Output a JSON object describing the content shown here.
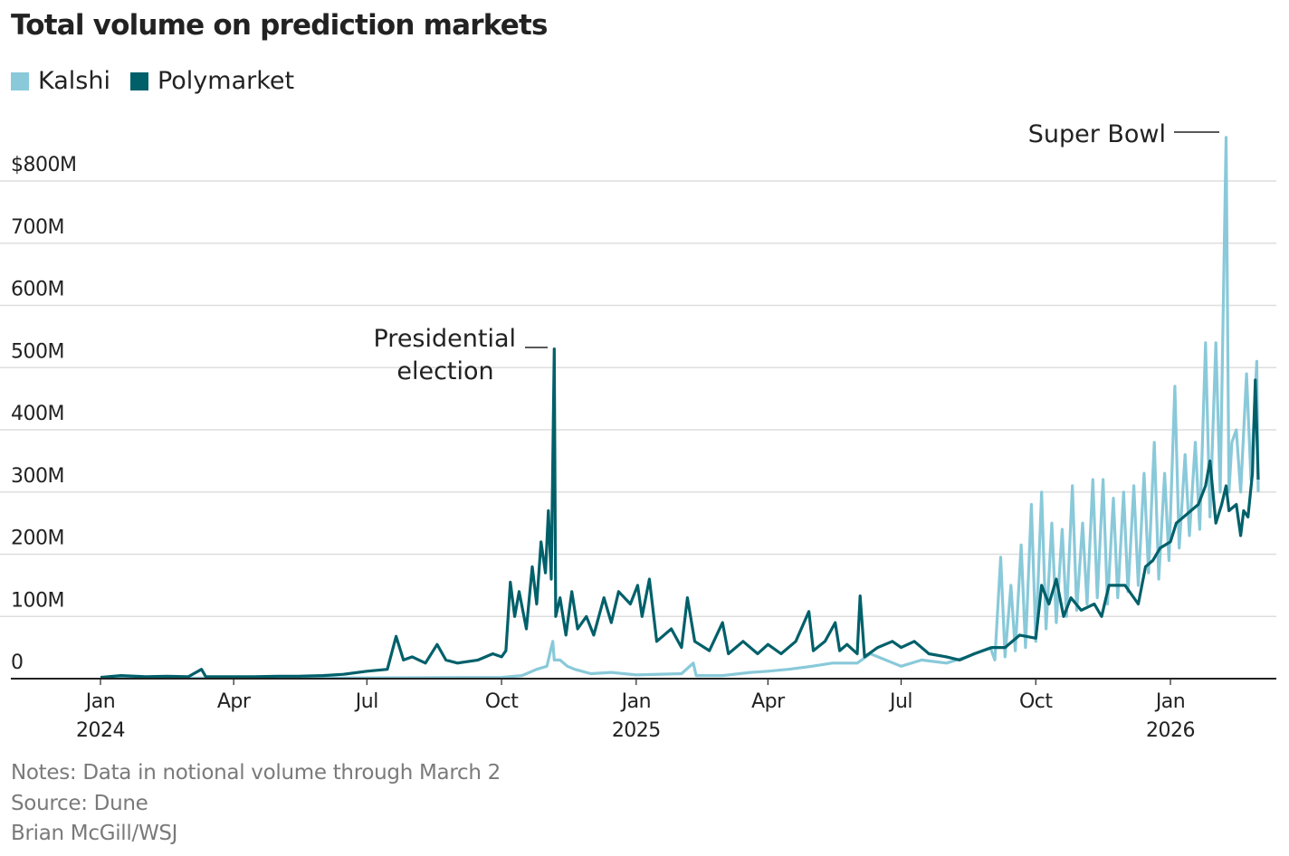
{
  "chart_data": {
    "type": "line",
    "title": "Total volume on prediction markets",
    "xlabel": "",
    "ylabel": "",
    "ylim": [
      0,
      800
    ],
    "y_ticks": [
      {
        "value": 0,
        "label": "0"
      },
      {
        "value": 100,
        "label": "100M"
      },
      {
        "value": 200,
        "label": "200M"
      },
      {
        "value": 300,
        "label": "300M"
      },
      {
        "value": 400,
        "label": "400M"
      },
      {
        "value": 500,
        "label": "500M"
      },
      {
        "value": 600,
        "label": "600M"
      },
      {
        "value": 700,
        "label": "700M"
      },
      {
        "value": 800,
        "label": "$800M"
      }
    ],
    "x_ticks": [
      {
        "date": "2024-01-01",
        "label": "Jan",
        "year": "2024"
      },
      {
        "date": "2024-04-01",
        "label": "Apr",
        "year": ""
      },
      {
        "date": "2024-07-01",
        "label": "Jul",
        "year": ""
      },
      {
        "date": "2024-10-01",
        "label": "Oct",
        "year": ""
      },
      {
        "date": "2025-01-01",
        "label": "Jan",
        "year": "2025"
      },
      {
        "date": "2025-04-01",
        "label": "Apr",
        "year": ""
      },
      {
        "date": "2025-07-01",
        "label": "Jul",
        "year": ""
      },
      {
        "date": "2025-10-01",
        "label": "Oct",
        "year": ""
      },
      {
        "date": "2026-01-01",
        "label": "Jan",
        "year": "2026"
      }
    ],
    "grid": true,
    "legend_position": "top-left",
    "series": [
      {
        "name": "Kalshi",
        "color": "#89c9d9",
        "points": [
          [
            "2024-01-01",
            1
          ],
          [
            "2024-06-01",
            1
          ],
          [
            "2024-10-01",
            2
          ],
          [
            "2024-10-15",
            5
          ],
          [
            "2024-10-25",
            15
          ],
          [
            "2024-11-01",
            20
          ],
          [
            "2024-11-04",
            50
          ],
          [
            "2024-11-05",
            60
          ],
          [
            "2024-11-06",
            30
          ],
          [
            "2024-11-10",
            30
          ],
          [
            "2024-11-15",
            20
          ],
          [
            "2024-11-20",
            15
          ],
          [
            "2024-12-01",
            8
          ],
          [
            "2024-12-15",
            10
          ],
          [
            "2025-01-01",
            6
          ],
          [
            "2025-02-01",
            8
          ],
          [
            "2025-02-09",
            25
          ],
          [
            "2025-02-11",
            5
          ],
          [
            "2025-03-01",
            5
          ],
          [
            "2025-03-20",
            10
          ],
          [
            "2025-04-01",
            12
          ],
          [
            "2025-04-15",
            15
          ],
          [
            "2025-05-01",
            20
          ],
          [
            "2025-05-15",
            25
          ],
          [
            "2025-06-01",
            25
          ],
          [
            "2025-06-10",
            40
          ],
          [
            "2025-07-01",
            20
          ],
          [
            "2025-07-15",
            30
          ],
          [
            "2025-08-01",
            25
          ],
          [
            "2025-08-15",
            35
          ],
          [
            "2025-08-31",
            50
          ],
          [
            "2025-09-03",
            30
          ],
          [
            "2025-09-07",
            195
          ],
          [
            "2025-09-10",
            35
          ],
          [
            "2025-09-14",
            150
          ],
          [
            "2025-09-17",
            45
          ],
          [
            "2025-09-21",
            215
          ],
          [
            "2025-09-24",
            50
          ],
          [
            "2025-09-28",
            280
          ],
          [
            "2025-10-01",
            60
          ],
          [
            "2025-10-05",
            300
          ],
          [
            "2025-10-08",
            80
          ],
          [
            "2025-10-12",
            250
          ],
          [
            "2025-10-15",
            90
          ],
          [
            "2025-10-19",
            240
          ],
          [
            "2025-10-22",
            100
          ],
          [
            "2025-10-26",
            310
          ],
          [
            "2025-10-29",
            110
          ],
          [
            "2025-11-02",
            250
          ],
          [
            "2025-11-05",
            120
          ],
          [
            "2025-11-09",
            320
          ],
          [
            "2025-11-12",
            130
          ],
          [
            "2025-11-16",
            320
          ],
          [
            "2025-11-19",
            120
          ],
          [
            "2025-11-23",
            290
          ],
          [
            "2025-11-26",
            130
          ],
          [
            "2025-11-30",
            300
          ],
          [
            "2025-12-03",
            140
          ],
          [
            "2025-12-07",
            310
          ],
          [
            "2025-12-10",
            150
          ],
          [
            "2025-12-14",
            330
          ],
          [
            "2025-12-17",
            170
          ],
          [
            "2025-12-21",
            380
          ],
          [
            "2025-12-24",
            160
          ],
          [
            "2025-12-28",
            330
          ],
          [
            "2025-12-31",
            190
          ],
          [
            "2026-01-04",
            470
          ],
          [
            "2026-01-07",
            210
          ],
          [
            "2026-01-11",
            360
          ],
          [
            "2026-01-14",
            230
          ],
          [
            "2026-01-18",
            380
          ],
          [
            "2026-01-21",
            240
          ],
          [
            "2026-01-25",
            540
          ],
          [
            "2026-01-28",
            260
          ],
          [
            "2026-02-01",
            540
          ],
          [
            "2026-02-04",
            300
          ],
          [
            "2026-02-08",
            870
          ],
          [
            "2026-02-10",
            300
          ],
          [
            "2026-02-12",
            380
          ],
          [
            "2026-02-15",
            400
          ],
          [
            "2026-02-18",
            300
          ],
          [
            "2026-02-22",
            490
          ],
          [
            "2026-02-25",
            320
          ],
          [
            "2026-03-01",
            510
          ],
          [
            "2026-03-02",
            300
          ]
        ]
      },
      {
        "name": "Polymarket",
        "color": "#00606a",
        "points": [
          [
            "2024-01-01",
            2
          ],
          [
            "2024-01-15",
            5
          ],
          [
            "2024-02-01",
            3
          ],
          [
            "2024-02-15",
            4
          ],
          [
            "2024-03-01",
            3
          ],
          [
            "2024-03-10",
            15
          ],
          [
            "2024-03-13",
            3
          ],
          [
            "2024-04-01",
            3
          ],
          [
            "2024-04-15",
            3
          ],
          [
            "2024-05-01",
            4
          ],
          [
            "2024-05-15",
            4
          ],
          [
            "2024-06-01",
            5
          ],
          [
            "2024-06-15",
            7
          ],
          [
            "2024-07-01",
            12
          ],
          [
            "2024-07-15",
            15
          ],
          [
            "2024-07-21",
            68
          ],
          [
            "2024-07-26",
            30
          ],
          [
            "2024-08-01",
            35
          ],
          [
            "2024-08-10",
            25
          ],
          [
            "2024-08-18",
            55
          ],
          [
            "2024-08-24",
            30
          ],
          [
            "2024-09-01",
            25
          ],
          [
            "2024-09-15",
            30
          ],
          [
            "2024-09-25",
            40
          ],
          [
            "2024-10-01",
            35
          ],
          [
            "2024-10-04",
            45
          ],
          [
            "2024-10-07",
            155
          ],
          [
            "2024-10-10",
            100
          ],
          [
            "2024-10-13",
            140
          ],
          [
            "2024-10-18",
            80
          ],
          [
            "2024-10-22",
            180
          ],
          [
            "2024-10-25",
            120
          ],
          [
            "2024-10-28",
            220
          ],
          [
            "2024-10-31",
            170
          ],
          [
            "2024-11-02",
            270
          ],
          [
            "2024-11-04",
            160
          ],
          [
            "2024-11-06",
            530
          ],
          [
            "2024-11-07",
            100
          ],
          [
            "2024-11-10",
            130
          ],
          [
            "2024-11-14",
            70
          ],
          [
            "2024-11-18",
            140
          ],
          [
            "2024-11-22",
            80
          ],
          [
            "2024-11-28",
            100
          ],
          [
            "2024-12-03",
            70
          ],
          [
            "2024-12-10",
            130
          ],
          [
            "2024-12-15",
            90
          ],
          [
            "2024-12-20",
            140
          ],
          [
            "2024-12-28",
            120
          ],
          [
            "2025-01-02",
            150
          ],
          [
            "2025-01-05",
            100
          ],
          [
            "2025-01-10",
            160
          ],
          [
            "2025-01-15",
            60
          ],
          [
            "2025-01-25",
            80
          ],
          [
            "2025-02-01",
            50
          ],
          [
            "2025-02-05",
            130
          ],
          [
            "2025-02-10",
            60
          ],
          [
            "2025-02-20",
            45
          ],
          [
            "2025-03-01",
            90
          ],
          [
            "2025-03-05",
            40
          ],
          [
            "2025-03-15",
            60
          ],
          [
            "2025-03-25",
            40
          ],
          [
            "2025-04-01",
            55
          ],
          [
            "2025-04-10",
            40
          ],
          [
            "2025-04-20",
            60
          ],
          [
            "2025-04-29",
            108
          ],
          [
            "2025-05-02",
            45
          ],
          [
            "2025-05-10",
            60
          ],
          [
            "2025-05-17",
            90
          ],
          [
            "2025-05-20",
            45
          ],
          [
            "2025-05-25",
            55
          ],
          [
            "2025-06-01",
            40
          ],
          [
            "2025-06-03",
            133
          ],
          [
            "2025-06-06",
            35
          ],
          [
            "2025-06-15",
            50
          ],
          [
            "2025-06-25",
            60
          ],
          [
            "2025-07-01",
            50
          ],
          [
            "2025-07-10",
            60
          ],
          [
            "2025-07-20",
            40
          ],
          [
            "2025-08-01",
            35
          ],
          [
            "2025-08-10",
            30
          ],
          [
            "2025-08-20",
            40
          ],
          [
            "2025-09-01",
            50
          ],
          [
            "2025-09-10",
            50
          ],
          [
            "2025-09-20",
            70
          ],
          [
            "2025-10-01",
            65
          ],
          [
            "2025-10-05",
            150
          ],
          [
            "2025-10-10",
            120
          ],
          [
            "2025-10-15",
            160
          ],
          [
            "2025-10-20",
            100
          ],
          [
            "2025-10-25",
            130
          ],
          [
            "2025-11-01",
            110
          ],
          [
            "2025-11-10",
            120
          ],
          [
            "2025-11-15",
            100
          ],
          [
            "2025-11-20",
            150
          ],
          [
            "2025-12-01",
            150
          ],
          [
            "2025-12-10",
            120
          ],
          [
            "2025-12-15",
            180
          ],
          [
            "2025-12-20",
            190
          ],
          [
            "2025-12-25",
            210
          ],
          [
            "2026-01-01",
            220
          ],
          [
            "2026-01-05",
            250
          ],
          [
            "2026-01-10",
            260
          ],
          [
            "2026-01-15",
            270
          ],
          [
            "2026-01-20",
            280
          ],
          [
            "2026-01-25",
            310
          ],
          [
            "2026-01-28",
            350
          ],
          [
            "2026-02-01",
            250
          ],
          [
            "2026-02-05",
            280
          ],
          [
            "2026-02-08",
            310
          ],
          [
            "2026-02-10",
            270
          ],
          [
            "2026-02-15",
            280
          ],
          [
            "2026-02-18",
            230
          ],
          [
            "2026-02-20",
            270
          ],
          [
            "2026-02-23",
            260
          ],
          [
            "2026-02-26",
            330
          ],
          [
            "2026-02-28",
            480
          ],
          [
            "2026-03-02",
            320
          ]
        ]
      }
    ],
    "annotations": [
      {
        "label_line1": "Presidential",
        "label_line2": "election",
        "date": "2024-11-06",
        "series": "Polymarket"
      },
      {
        "label_line1": "Super Bowl",
        "label_line2": "",
        "date": "2026-02-08",
        "series": "Kalshi"
      }
    ]
  },
  "footer": {
    "notes": "Notes: Data in notional volume through March 2",
    "source": "Source: Dune",
    "credit": "Brian McGill/WSJ"
  }
}
